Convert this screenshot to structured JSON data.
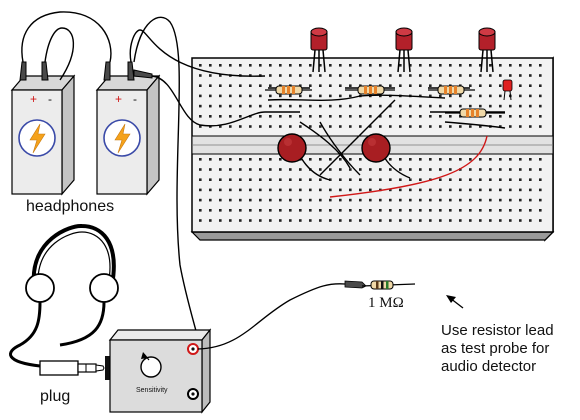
{
  "labels": {
    "headphones": "headphones",
    "plug": "plug",
    "sensitivity": "Sensitivity",
    "resistor_value": "1 MΩ",
    "probe_note": [
      "Use resistor lead",
      "as test probe for",
      "audio detector"
    ],
    "battery_plus": "+",
    "battery_minus": "-"
  },
  "colors": {
    "breadboard_fill": "#f2f2f2",
    "hole": "#222222",
    "led_red": "#b3202a",
    "potentiometer": "#a81e22",
    "battery_fill": "#ececec",
    "lightning": "#f5a21b",
    "lightning_ring": "#3a4aa8",
    "resistor_body": "#f0d9a8",
    "resistor_band_orange": "#e6822a",
    "red_wire": "#d01818",
    "detector_box": "#dcdcdc",
    "jack_ring_red": "#d01818"
  },
  "icons": {
    "battery": "battery-icon",
    "lightning": "lightning-icon",
    "led": "led-icon",
    "headphones": "headphones-icon",
    "plug": "audio-plug-icon",
    "sensitivity_knob": "knob-icon",
    "alligator_clip": "alligator-clip-icon",
    "arrow": "arrow-icon"
  }
}
